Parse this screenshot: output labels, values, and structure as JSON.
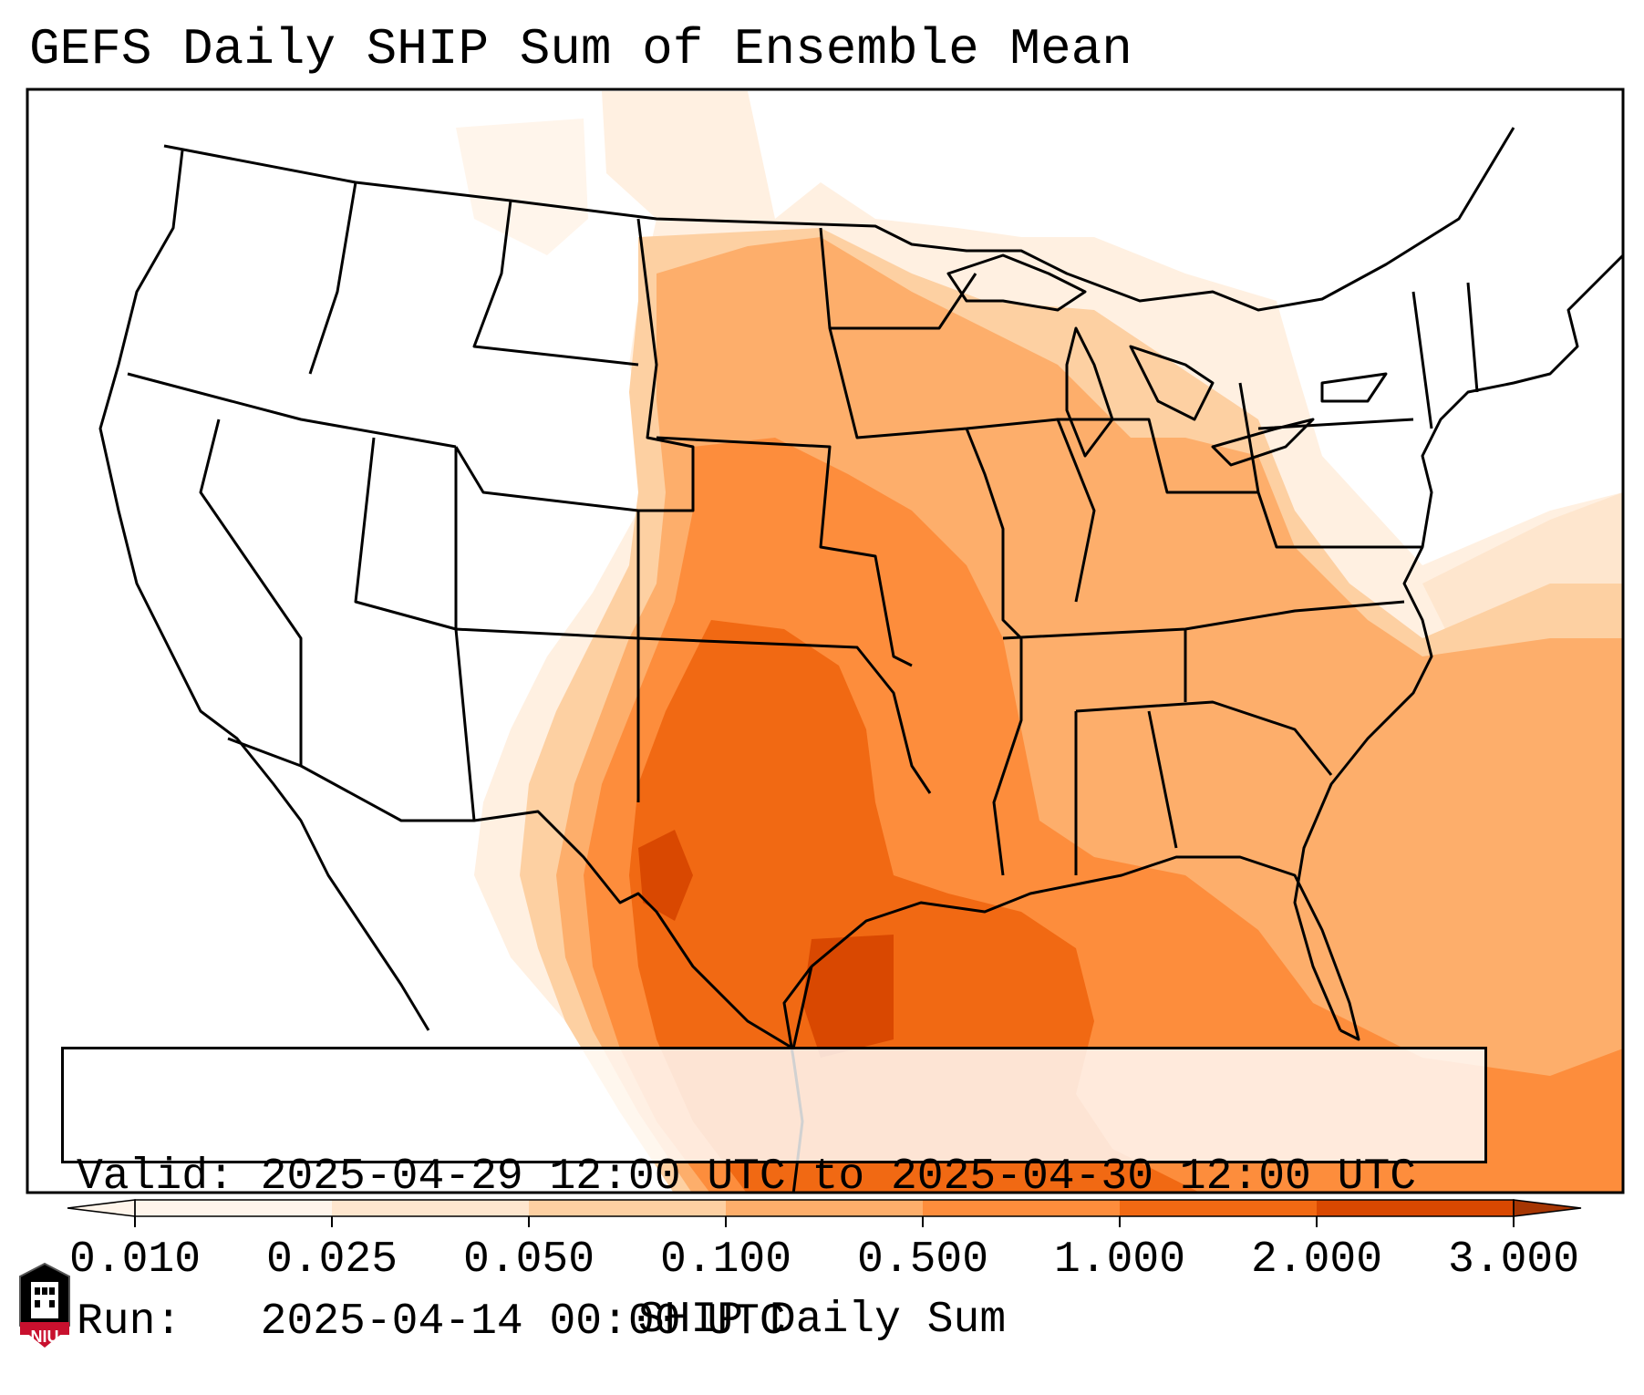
{
  "title": "GEFS Daily SHIP Sum of Ensemble Mean",
  "valid_label": "Valid:",
  "valid_value": "2025-04-29 12:00 UTC to 2025-04-30 12:00 UTC",
  "run_label": "Run:",
  "run_value": "2025-04-14 00:00 UTC",
  "colorbar": {
    "label": "SHIP Daily Sum",
    "ticks": [
      "0.010",
      "0.025",
      "0.050",
      "0.100",
      "0.500",
      "1.000",
      "2.000",
      "3.000"
    ],
    "colors": [
      "#fff5eb",
      "#fee6ce",
      "#fdd0a2",
      "#fdae6b",
      "#fd8d3c",
      "#f16913",
      "#d94801",
      "#a63603"
    ],
    "extend": "both"
  },
  "logo_text": "NIU",
  "map_regions": [
    {
      "name": "Texas / Oklahoma core",
      "level": "2.000"
    },
    {
      "name": "Gulf of Mexico (upper Texas coast)",
      "level": "2.000"
    },
    {
      "name": "Central Plains",
      "level": "0.500"
    },
    {
      "name": "Midwest and Southeast",
      "level": "0.100"
    },
    {
      "name": "Western Atlantic",
      "level": "0.100"
    },
    {
      "name": "Northern Plains fringe",
      "level": "0.025"
    }
  ]
}
